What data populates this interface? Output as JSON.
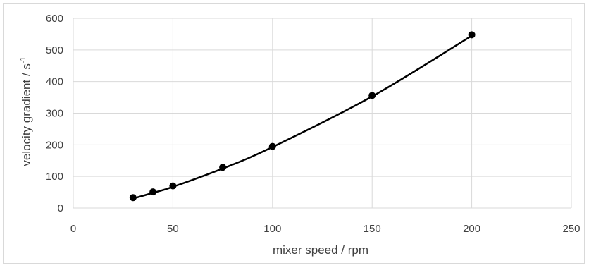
{
  "chart_data": {
    "type": "scatter",
    "title": "",
    "xlabel": "mixer speed / rpm",
    "ylabel": "velocity gradient  / s",
    "ylabel_superscript": "-1",
    "xlim": [
      0,
      250
    ],
    "ylim": [
      0,
      600
    ],
    "xticks": [
      0,
      50,
      100,
      150,
      200,
      250
    ],
    "yticks": [
      0,
      100,
      200,
      300,
      400,
      500,
      600
    ],
    "grid": true,
    "legend": "none",
    "series": [
      {
        "marker": "circle",
        "color": "#000000",
        "x": [
          30,
          40,
          50,
          75,
          100,
          150,
          200
        ],
        "y": [
          33,
          51,
          70,
          129,
          195,
          356,
          548
        ]
      },
      {
        "line": "smooth",
        "color": "#000000",
        "x": [
          30,
          40,
          50,
          75,
          100,
          150,
          200
        ],
        "y": [
          30,
          48,
          67,
          125,
          193,
          353,
          545
        ]
      }
    ]
  }
}
